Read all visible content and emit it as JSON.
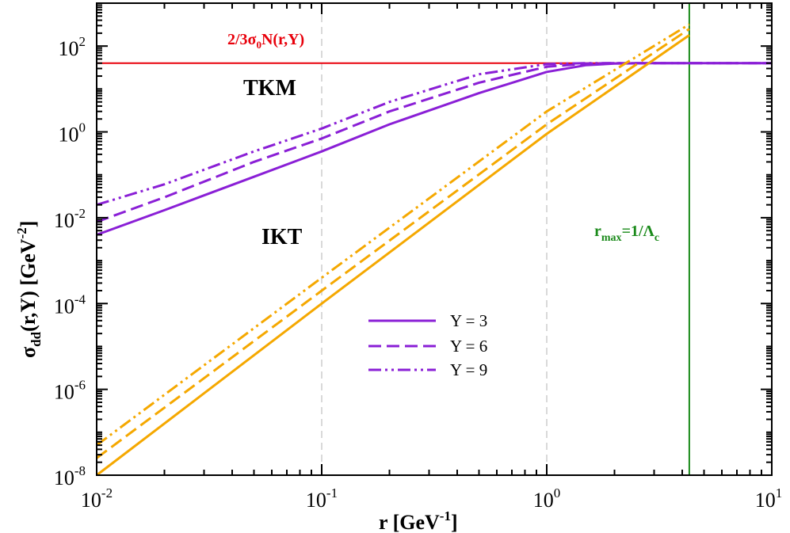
{
  "chart_data": {
    "type": "line",
    "xscale": "log",
    "yscale": "log",
    "xlim": [
      0.01,
      10
    ],
    "ylim": [
      1e-08,
      1000
    ],
    "xlabel": {
      "base": "r [GeV",
      "exp": "-1",
      "close": "]"
    },
    "ylabel": {
      "sym": "σ",
      "sub": "dd",
      "base": "(r,Y) [GeV",
      "exp": "-2",
      "close": "]"
    },
    "x_ticks": [
      {
        "base": "10",
        "exp": "-2",
        "value": 0.01
      },
      {
        "base": "10",
        "exp": "-1",
        "value": 0.1
      },
      {
        "base": "10",
        "exp": "0",
        "value": 1
      },
      {
        "base": "10",
        "exp": "1",
        "value": 10
      }
    ],
    "y_ticks": [
      {
        "base": "10",
        "exp": "-8",
        "value": 1e-08
      },
      {
        "base": "10",
        "exp": "-6",
        "value": 1e-06
      },
      {
        "base": "10",
        "exp": "-4",
        "value": 0.0001
      },
      {
        "base": "10",
        "exp": "-2",
        "value": 0.01
      },
      {
        "base": "10",
        "exp": "0",
        "value": 1
      },
      {
        "base": "10",
        "exp": "2",
        "value": 100
      }
    ],
    "reference_lines": {
      "vertical_dashed": [
        0.1,
        1
      ],
      "saturation": {
        "value": 40,
        "color": "#e8000b",
        "label_pre": "2/3σ",
        "label_sub": "0",
        "label_post": "N(r,Y)"
      },
      "r_max": {
        "value": 4.3,
        "color": "#1a8a1a",
        "label_pre": "r",
        "label_sub": "max",
        "label_mid": "=1/Λ",
        "label_sub2": "c"
      }
    },
    "model_labels": {
      "tkm": "TKM",
      "ikt": "IKT"
    },
    "colors": {
      "tkm": "#8a1fd6",
      "ikt": "#f5a800"
    },
    "legend": {
      "placement": "center",
      "entries": [
        {
          "label": "Y = 3",
          "style": "solid"
        },
        {
          "label": "Y = 6",
          "style": "dashed"
        },
        {
          "label": "Y = 9",
          "style": "dashdotdot"
        }
      ]
    },
    "series": [
      {
        "name": "TKM Y=3",
        "model": "tkm",
        "style": "solid",
        "x": [
          0.01,
          0.02,
          0.05,
          0.1,
          0.2,
          0.5,
          1,
          1.5,
          2,
          3,
          4.3,
          10
        ],
        "y": [
          0.004,
          0.015,
          0.09,
          0.35,
          1.5,
          8,
          25,
          36,
          39,
          40,
          40,
          40
        ]
      },
      {
        "name": "TKM Y=6",
        "model": "tkm",
        "style": "dashed",
        "x": [
          0.01,
          0.02,
          0.05,
          0.1,
          0.2,
          0.5,
          1,
          1.5,
          2,
          3,
          4.3,
          10
        ],
        "y": [
          0.008,
          0.03,
          0.2,
          0.7,
          3,
          14,
          33,
          39,
          40,
          40,
          40,
          40
        ]
      },
      {
        "name": "TKM Y=9",
        "model": "tkm",
        "style": "dashdotdot",
        "x": [
          0.01,
          0.02,
          0.05,
          0.1,
          0.2,
          0.5,
          1,
          1.5,
          2,
          3,
          4.3,
          10
        ],
        "y": [
          0.02,
          0.06,
          0.35,
          1.2,
          5,
          22,
          38,
          40,
          40,
          40,
          40,
          40
        ]
      },
      {
        "name": "IKT Y=3",
        "model": "ikt",
        "style": "solid",
        "x": [
          0.01,
          0.1,
          1,
          4.3
        ],
        "y": [
          1e-08,
          0.0001,
          0.9,
          180
        ]
      },
      {
        "name": "IKT Y=6",
        "model": "ikt",
        "style": "dashed",
        "x": [
          0.01,
          0.1,
          1,
          4.3
        ],
        "y": [
          2.5e-08,
          0.0002,
          1.5,
          250
        ]
      },
      {
        "name": "IKT Y=9",
        "model": "ikt",
        "style": "dashdotdot",
        "x": [
          0.01,
          0.1,
          1,
          4.3
        ],
        "y": [
          5e-08,
          0.0004,
          3,
          320
        ]
      }
    ]
  }
}
